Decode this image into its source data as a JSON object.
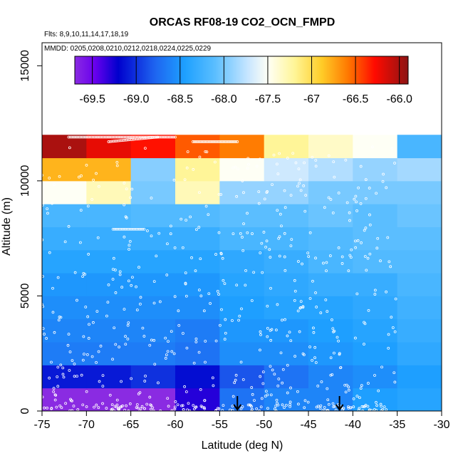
{
  "chart_data": {
    "type": "heatmap",
    "title": "ORCAS RF08-19 CO2_OCN_FMPD",
    "flights_label": "Flts: 8,9,10,11,14,17,18,19",
    "dates_label": "MMDD: 0205,0208,0210,0212,0218,0224,0225,0229",
    "xlabel": "Latitude (deg N)",
    "ylabel": "Altitude (m)",
    "xlim": [
      -75,
      -30
    ],
    "ylim": [
      0,
      16000
    ],
    "x_ticks": [
      -75,
      -70,
      -65,
      -60,
      -55,
      -50,
      -45,
      -40,
      -35,
      -30
    ],
    "x_tick_labels": [
      "-75",
      "-70",
      "-65",
      "-60",
      "-55",
      "-50",
      "-45",
      "-40",
      "-35",
      "-30"
    ],
    "y_ticks": [
      0,
      5000,
      10000,
      15000
    ],
    "y_tick_labels": [
      "0",
      "5000",
      "10000",
      "15000"
    ],
    "colorbar": {
      "range": [
        -69.7,
        -65.9
      ],
      "ticks": [
        -69.5,
        -69.0,
        -68.5,
        -68.0,
        -67.5,
        -67.0,
        -66.5,
        -66.0
      ],
      "tick_labels": [
        "-69.5",
        "-69.0",
        "-68.5",
        "-68.0",
        "-67.5",
        "-67",
        "-66.5",
        "-66.0"
      ]
    },
    "lat_bins": [
      -75,
      -70,
      -65,
      -60,
      -55,
      -50,
      -45,
      -40,
      -35,
      -30
    ],
    "alt_bins": [
      0,
      1000,
      2000,
      3000,
      4000,
      5000,
      6000,
      7000,
      8000,
      9000,
      10000,
      11000,
      12000
    ],
    "cells": [
      [
        -69.7,
        -69.7,
        -69.7,
        -69.3,
        -68.7,
        -68.6,
        -68.6,
        -68.45,
        -68.4,
        null
      ],
      [
        -69.1,
        -69.1,
        -69.0,
        -69.15,
        -68.85,
        -68.7,
        -68.6,
        -68.55,
        -68.45,
        null
      ],
      [
        -68.65,
        -68.65,
        -68.65,
        -68.7,
        -68.55,
        -68.55,
        -68.5,
        -68.45,
        -68.35,
        null
      ],
      [
        -68.6,
        -68.6,
        -68.6,
        -68.65,
        -68.5,
        -68.5,
        -68.45,
        -68.4,
        -68.3,
        null
      ],
      [
        -68.55,
        -68.55,
        -68.55,
        -68.55,
        -68.45,
        -68.4,
        -68.4,
        -68.35,
        -68.25,
        null
      ],
      [
        -68.5,
        -68.5,
        -68.5,
        -68.5,
        -68.4,
        -68.35,
        -68.3,
        -68.3,
        -68.2,
        null
      ],
      [
        -68.4,
        -68.4,
        -68.4,
        -68.4,
        -68.35,
        -68.3,
        -68.2,
        -68.15,
        -68.15,
        null
      ],
      [
        -68.3,
        -68.3,
        -68.3,
        -68.3,
        -68.2,
        -68.2,
        -68.15,
        -68.1,
        -68.1,
        null
      ],
      [
        -68.2,
        -68.2,
        -68.15,
        -68.15,
        -68.1,
        -68.1,
        -68.05,
        -68.1,
        -68.05,
        null
      ],
      [
        -67.5,
        -67.3,
        -68.0,
        -67.3,
        -67.9,
        -67.9,
        -68.0,
        -68.0,
        -68.0,
        null
      ],
      [
        -66.8,
        -66.8,
        -67.95,
        -67.2,
        -67.5,
        -67.7,
        -67.8,
        -67.9,
        -67.85,
        null
      ],
      [
        -66.0,
        -66.2,
        -66.3,
        -66.5,
        -66.6,
        -67.2,
        -67.35,
        -67.5,
        -68.2,
        -68.15
      ]
    ],
    "arrows_lat": [
      -53,
      -41.5
    ]
  }
}
